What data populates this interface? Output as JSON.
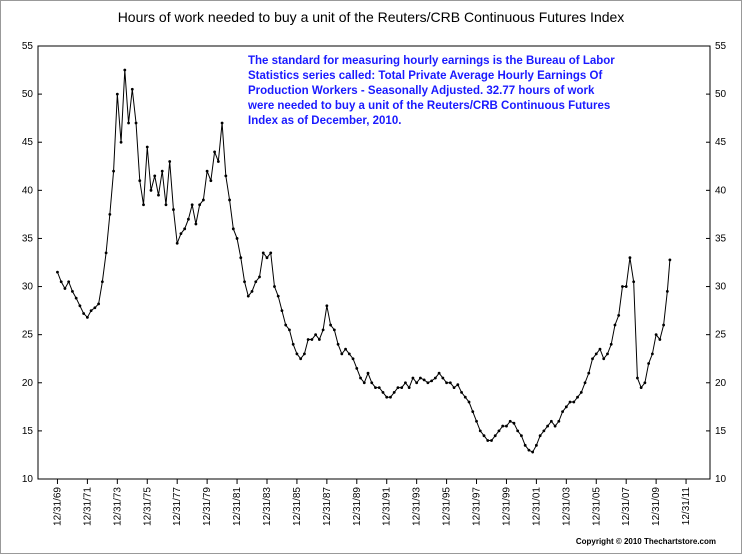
{
  "chart_data": {
    "type": "line",
    "title": "Hours of work needed to buy a unit of the Reuters/CRB Continuous Futures Index",
    "annotation": [
      "The standard for measuring hourly earnings is the Bureau of Labor",
      "Statistics series called:  Total Private Average Hourly Earnings Of",
      "Production Workers - Seasonally Adjusted.  32.77 hours of work",
      "were needed to buy a unit of the Reuters/CRB Continuous Futures",
      "Index as of December, 2010."
    ],
    "footer": "Copyright © 2010 Thechartstore.com",
    "xlim": [
      1968.7,
      2013.6
    ],
    "ylim": [
      10,
      55
    ],
    "y2lim": [
      10,
      55
    ],
    "yticks": [
      10,
      15,
      20,
      25,
      30,
      35,
      40,
      45,
      50,
      55
    ],
    "xticks": [
      {
        "value": 1970,
        "label": "12/31/69"
      },
      {
        "value": 1972,
        "label": "12/31/71"
      },
      {
        "value": 1974,
        "label": "12/31/73"
      },
      {
        "value": 1976,
        "label": "12/31/75"
      },
      {
        "value": 1978,
        "label": "12/31/77"
      },
      {
        "value": 1980,
        "label": "12/31/79"
      },
      {
        "value": 1982,
        "label": "12/31/81"
      },
      {
        "value": 1984,
        "label": "12/31/83"
      },
      {
        "value": 1986,
        "label": "12/31/85"
      },
      {
        "value": 1988,
        "label": "12/31/87"
      },
      {
        "value": 1990,
        "label": "12/31/89"
      },
      {
        "value": 1992,
        "label": "12/31/91"
      },
      {
        "value": 1994,
        "label": "12/31/93"
      },
      {
        "value": 1996,
        "label": "12/31/95"
      },
      {
        "value": 1998,
        "label": "12/31/97"
      },
      {
        "value": 2000,
        "label": "12/31/99"
      },
      {
        "value": 2002,
        "label": "12/31/01"
      },
      {
        "value": 2004,
        "label": "12/31/03"
      },
      {
        "value": 2006,
        "label": "12/31/05"
      },
      {
        "value": 2008,
        "label": "12/31/07"
      },
      {
        "value": 2010,
        "label": "12/31/09"
      },
      {
        "value": 2012,
        "label": "12/31/11"
      }
    ],
    "color": "#000000",
    "x": [
      1970.0,
      1970.25,
      1970.5,
      1970.75,
      1971.0,
      1971.25,
      1971.5,
      1971.75,
      1972.0,
      1972.25,
      1972.5,
      1972.75,
      1973.0,
      1973.25,
      1973.5,
      1973.75,
      1974.0,
      1974.25,
      1974.5,
      1974.75,
      1975.0,
      1975.25,
      1975.5,
      1975.75,
      1976.0,
      1976.25,
      1976.5,
      1976.75,
      1977.0,
      1977.25,
      1977.5,
      1977.75,
      1978.0,
      1978.25,
      1978.5,
      1978.75,
      1979.0,
      1979.25,
      1979.5,
      1979.75,
      1980.0,
      1980.25,
      1980.5,
      1980.75,
      1981.0,
      1981.25,
      1981.5,
      1981.75,
      1982.0,
      1982.25,
      1982.5,
      1982.75,
      1983.0,
      1983.25,
      1983.5,
      1983.75,
      1984.0,
      1984.25,
      1984.5,
      1984.75,
      1985.0,
      1985.25,
      1985.5,
      1985.75,
      1986.0,
      1986.25,
      1986.5,
      1986.75,
      1987.0,
      1987.25,
      1987.5,
      1987.75,
      1988.0,
      1988.25,
      1988.5,
      1988.75,
      1989.0,
      1989.25,
      1989.5,
      1989.75,
      1990.0,
      1990.25,
      1990.5,
      1990.75,
      1991.0,
      1991.25,
      1991.5,
      1991.75,
      1992.0,
      1992.25,
      1992.5,
      1992.75,
      1993.0,
      1993.25,
      1993.5,
      1993.75,
      1994.0,
      1994.25,
      1994.5,
      1994.75,
      1995.0,
      1995.25,
      1995.5,
      1995.75,
      1996.0,
      1996.25,
      1996.5,
      1996.75,
      1997.0,
      1997.25,
      1997.5,
      1997.75,
      1998.0,
      1998.25,
      1998.5,
      1998.75,
      1999.0,
      1999.25,
      1999.5,
      1999.75,
      2000.0,
      2000.25,
      2000.5,
      2000.75,
      2001.0,
      2001.25,
      2001.5,
      2001.75,
      2002.0,
      2002.25,
      2002.5,
      2002.75,
      2003.0,
      2003.25,
      2003.5,
      2003.75,
      2004.0,
      2004.25,
      2004.5,
      2004.75,
      2005.0,
      2005.25,
      2005.5,
      2005.75,
      2006.0,
      2006.25,
      2006.5,
      2006.75,
      2007.0,
      2007.25,
      2007.5,
      2007.75,
      2008.0,
      2008.25,
      2008.5,
      2008.75,
      2009.0,
      2009.25,
      2009.5,
      2009.75,
      2010.0,
      2010.25,
      2010.5,
      2010.75,
      2010.92
    ],
    "values": [
      31.5,
      30.5,
      29.8,
      30.5,
      29.5,
      28.8,
      28.0,
      27.2,
      26.8,
      27.5,
      27.8,
      28.2,
      30.5,
      33.5,
      37.5,
      42,
      50,
      45,
      52.5,
      47,
      50.5,
      47,
      41,
      38.5,
      44.5,
      40,
      41.5,
      39.5,
      42,
      38.5,
      43,
      38,
      34.5,
      35.5,
      36,
      37,
      38.5,
      36.5,
      38.5,
      39,
      42,
      41,
      44,
      43,
      47,
      41.5,
      39,
      36,
      35,
      33,
      30.5,
      29,
      29.5,
      30.5,
      31,
      33.5,
      33,
      33.5,
      30,
      29,
      27.5,
      26,
      25.5,
      24,
      23,
      22.5,
      23,
      24.5,
      24.5,
      25,
      24.5,
      25.5,
      28,
      26,
      25.5,
      24,
      23,
      23.5,
      23,
      22.5,
      21.5,
      20.5,
      20,
      21,
      20,
      19.5,
      19.5,
      19,
      18.5,
      18.5,
      19,
      19.5,
      19.5,
      20,
      19.5,
      20.5,
      20,
      20.5,
      20.3,
      20,
      20.2,
      20.5,
      21,
      20.5,
      20,
      20,
      19.5,
      19.8,
      19,
      18.5,
      18,
      17,
      16,
      15,
      14.5,
      14,
      14,
      14.5,
      15,
      15.5,
      15.5,
      16,
      15.8,
      15,
      14.5,
      13.5,
      13,
      12.8,
      13.5,
      14.5,
      15,
      15.5,
      16,
      15.5,
      16,
      17,
      17.5,
      18,
      18,
      18.5,
      19,
      20,
      21,
      22.5,
      23,
      23.5,
      22.5,
      23,
      24,
      26,
      27,
      30,
      30,
      33,
      30.5,
      20.5,
      19.5,
      20,
      22,
      23,
      25,
      24.5,
      26,
      29.5,
      32.77
    ]
  }
}
